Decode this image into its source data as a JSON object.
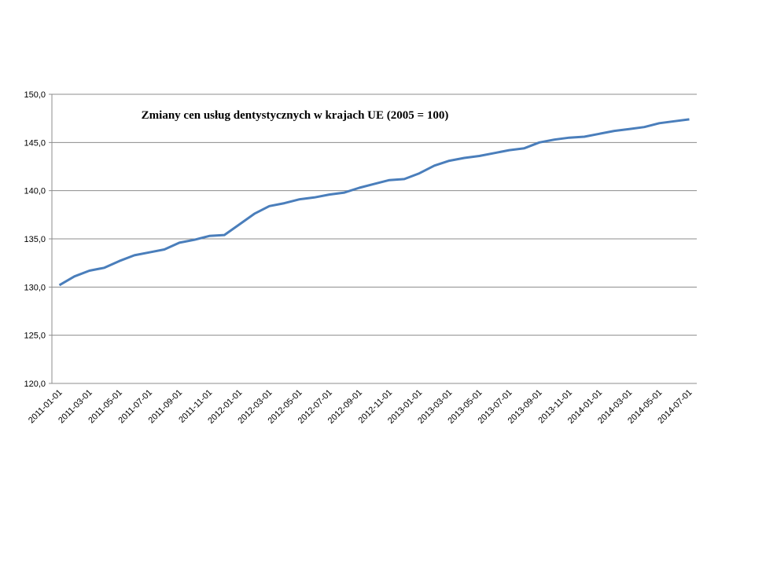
{
  "chart_data": {
    "type": "line",
    "title": "Zmiany cen usług dentystycznych w krajach UE (2005 = 100)",
    "categories": [
      "2011-01-01",
      null,
      "2011-03-01",
      null,
      "2011-05-01",
      null,
      "2011-07-01",
      null,
      "2011-09-01",
      null,
      "2011-11-01",
      null,
      "2012-01-01",
      null,
      "2012-03-01",
      null,
      "2012-05-01",
      null,
      "2012-07-01",
      null,
      "2012-09-01",
      null,
      "2012-11-01",
      null,
      "2013-01-01",
      null,
      "2013-03-01",
      null,
      "2013-05-01",
      null,
      "2013-07-01",
      null,
      "2013-09-01",
      null,
      "2013-11-01",
      null,
      "2014-01-01",
      null,
      "2014-03-01",
      null,
      "2014-05-01",
      null,
      "2014-07-01"
    ],
    "series": [
      {
        "color": "#4a7ebb",
        "values": [
          130.2,
          131.1,
          131.7,
          132.0,
          132.7,
          133.3,
          133.6,
          133.9,
          134.6,
          134.9,
          135.3,
          135.4,
          136.5,
          137.6,
          138.4,
          138.7,
          139.1,
          139.3,
          139.6,
          139.8,
          140.3,
          140.7,
          141.1,
          141.2,
          141.8,
          142.6,
          143.1,
          143.4,
          143.6,
          143.9,
          144.2,
          144.4,
          145.0,
          145.3,
          145.5,
          145.6,
          145.9,
          146.2,
          146.4,
          146.6,
          147.0,
          147.2,
          147.4
        ]
      }
    ],
    "ylim": [
      120,
      150
    ],
    "yticks": [
      {
        "value": 120,
        "label": "120,0"
      },
      {
        "value": 125,
        "label": "125,0"
      },
      {
        "value": 130,
        "label": "130,0"
      },
      {
        "value": 135,
        "label": "135,0"
      },
      {
        "value": 140,
        "label": "140,0"
      },
      {
        "value": 145,
        "label": "145,0"
      },
      {
        "value": 150,
        "label": "150,0"
      }
    ],
    "grid": true
  }
}
